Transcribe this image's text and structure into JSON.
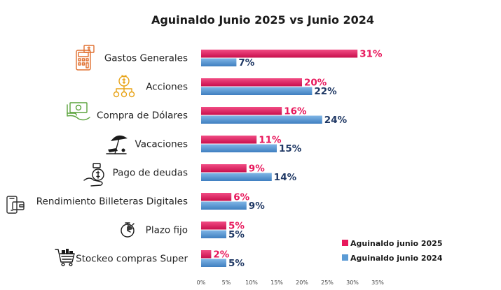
{
  "chart_data": {
    "type": "bar",
    "orientation": "horizontal",
    "title": "Aguinaldo Junio 2025 vs Junio 2024",
    "categories": [
      "Gastos Generales",
      "Acciones",
      "Compra de Dólares",
      "Vacaciones",
      "Pago de deudas",
      "Rendimiento Billeteras Digitales",
      "Plazo fijo",
      "Stockeo compras Super"
    ],
    "series": [
      {
        "name": "Aguinaldo junio 2025",
        "color": "#e8185c",
        "label_color": "#e8185c",
        "values": [
          31,
          20,
          16,
          11,
          9,
          6,
          5,
          2
        ]
      },
      {
        "name": "Aguinaldo junio 2024",
        "color": "#5b9bd5",
        "label_color": "#1f3864",
        "values": [
          7,
          22,
          24,
          15,
          14,
          9,
          5,
          5
        ]
      }
    ],
    "value_suffix": "%",
    "xlim": [
      0,
      35
    ],
    "x_ticks": [
      "0%",
      "5%",
      "10%",
      "15%",
      "20%",
      "25%",
      "30%",
      "35%"
    ],
    "grid": false,
    "legend_position": "bottom-right",
    "icons": [
      "calculator-money-icon",
      "money-bag-network-icon",
      "cash-hand-icon",
      "beach-umbrella-icon",
      "hand-coin-icon",
      "digital-wallet-icon",
      "stopwatch-icon",
      "shopping-cart-icon"
    ]
  }
}
